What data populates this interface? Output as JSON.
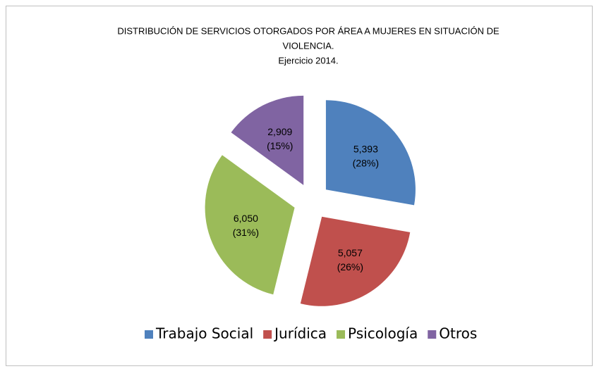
{
  "chart_data": {
    "type": "pie",
    "title": "DISTRIBUCIÓN DE SERVICIOS OTORGADOS POR ÁREA A MUJERES EN SITUACIÓN DE",
    "title_line2": "VIOLENCIA.",
    "subtitle": "Ejercicio 2014.",
    "categories": [
      "Trabajo Social",
      "Jurídica",
      "Psicología",
      "Otros"
    ],
    "values": [
      5393,
      5057,
      6050,
      2909
    ],
    "value_labels": [
      "5,393",
      "5,057",
      "6,050",
      "2,909"
    ],
    "percents": [
      28,
      26,
      31,
      15
    ],
    "percent_labels": [
      "(28%)",
      "(26%)",
      "(31%)",
      "(15%)"
    ],
    "colors": [
      "#4f81bd",
      "#c0504d",
      "#9bbb59",
      "#8064a2"
    ],
    "exploded": true,
    "legend": "bottom"
  }
}
